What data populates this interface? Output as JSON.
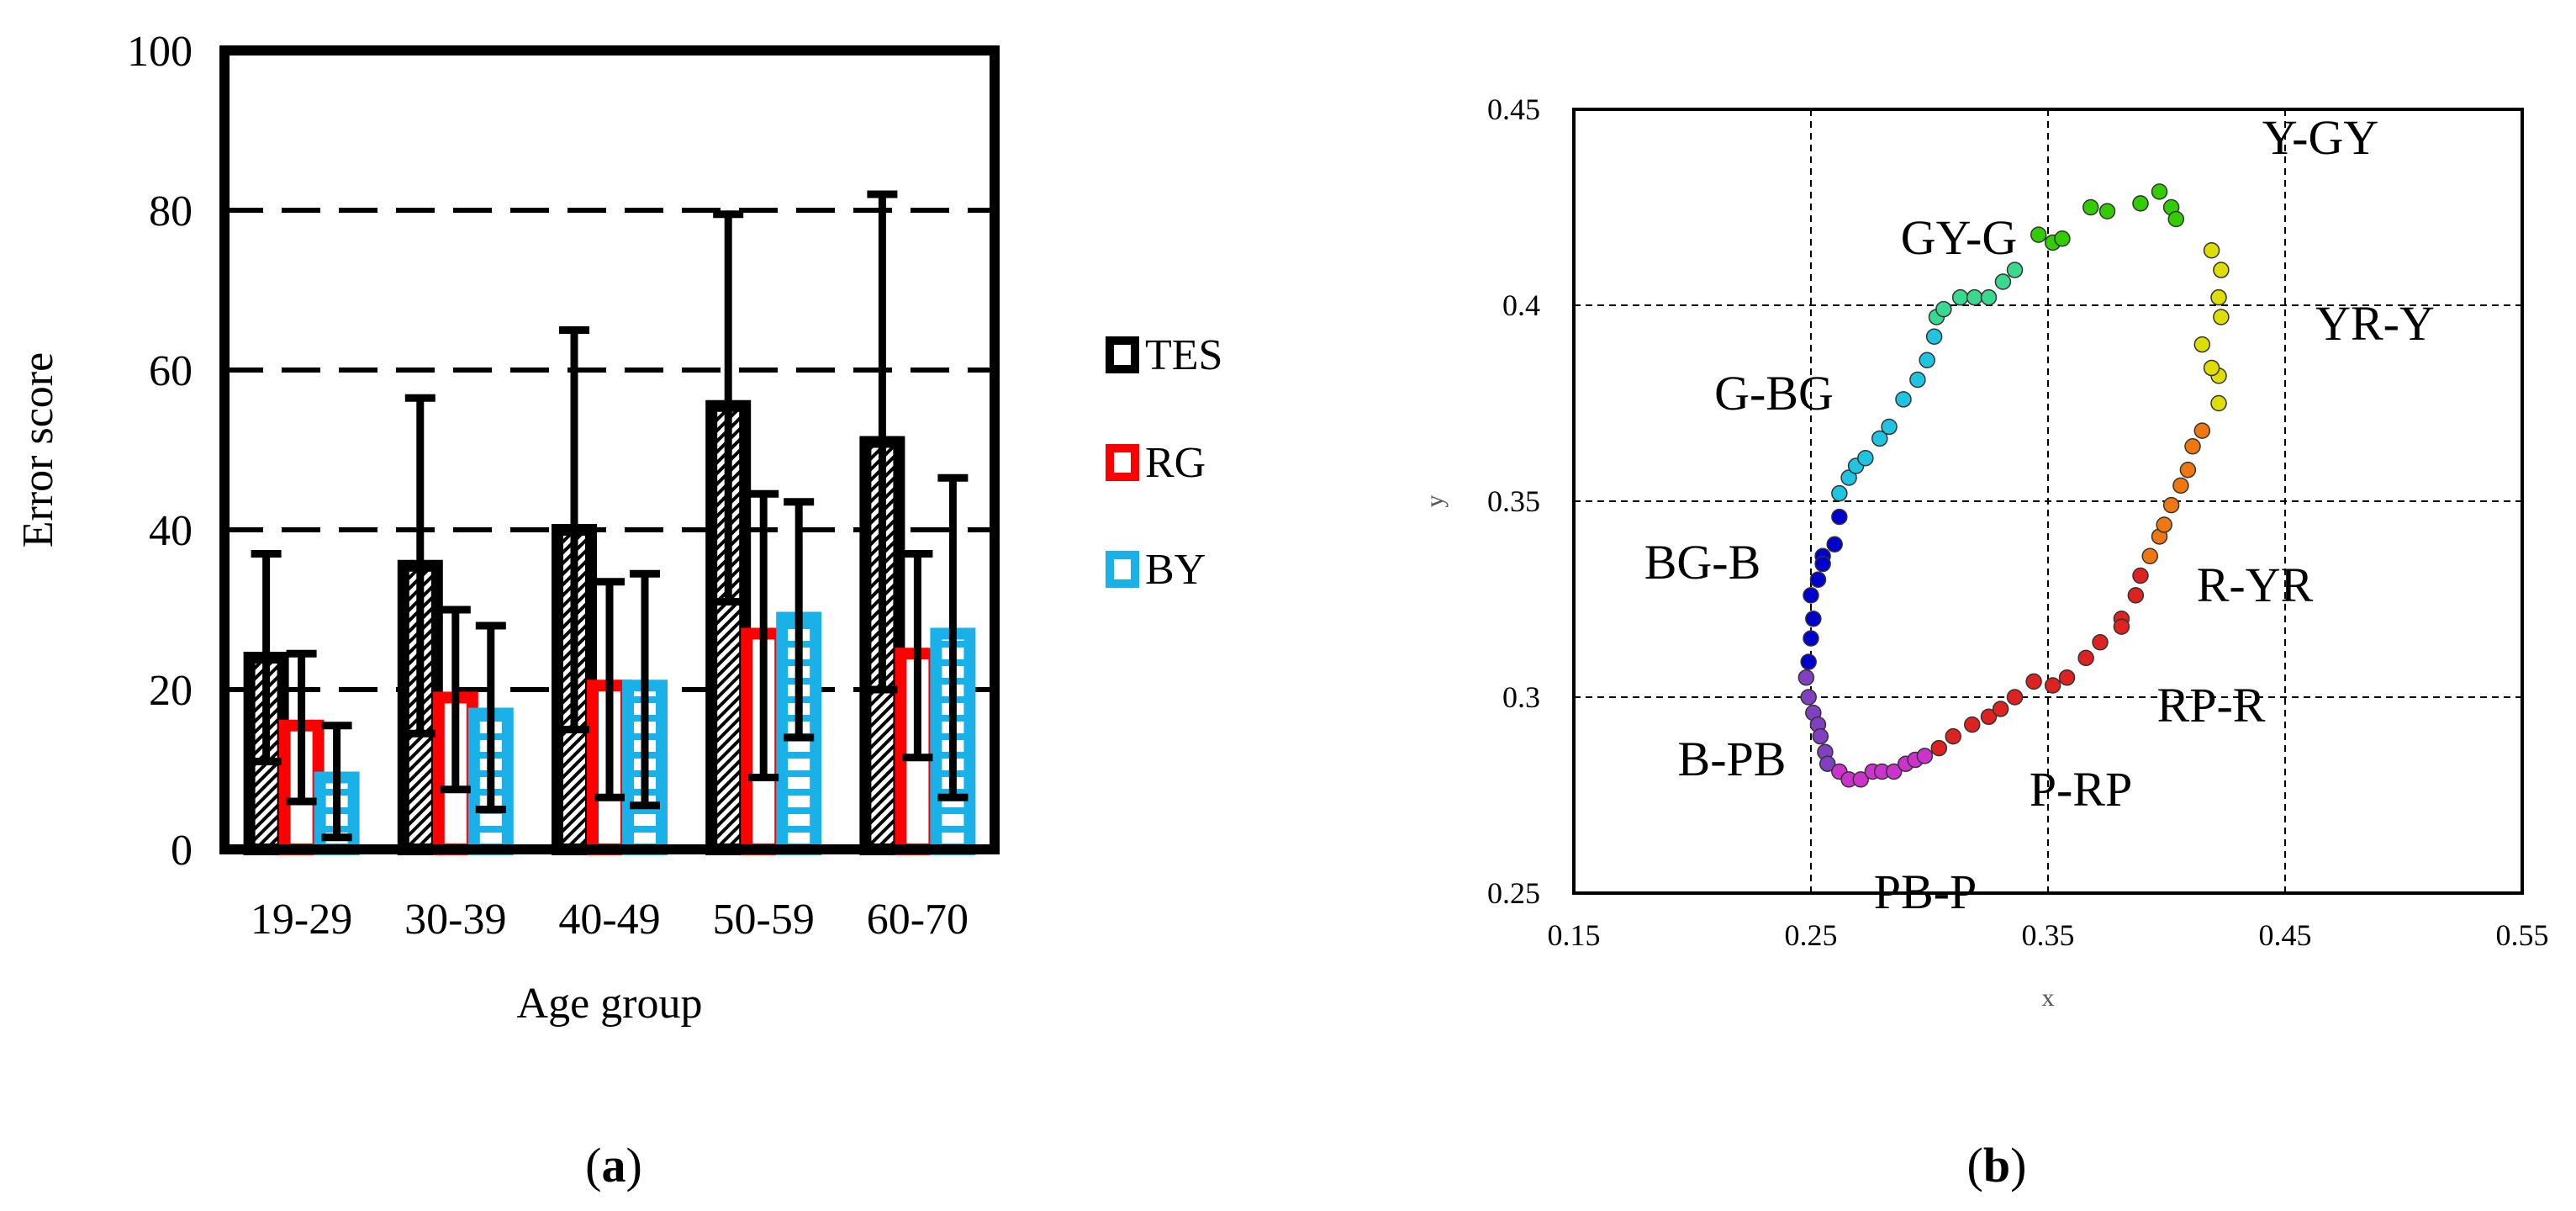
{
  "chart_data": [
    {
      "type": "bar",
      "panel_label": "a",
      "title": "",
      "xlabel": "Age group",
      "ylabel": "Error score",
      "ylim": [
        0,
        100
      ],
      "yticks": [
        "0",
        "20",
        "40",
        "60",
        "80",
        "100"
      ],
      "ytick_values": [
        0,
        20,
        40,
        60,
        80,
        100
      ],
      "grid": "dashed horizontal at 20, 40, 60, 80",
      "categories": [
        "19-29",
        "30-39",
        "40-49",
        "50-59",
        "60-70"
      ],
      "legend_position": "right",
      "series": [
        {
          "name": "TES",
          "color": "#000000",
          "fill": "#ffffff",
          "values": [
            24,
            35.5,
            40,
            55.5,
            51
          ],
          "error_low": [
            11,
            14.5,
            15,
            31,
            20
          ],
          "error_high": [
            37,
            56.5,
            65,
            79.5,
            82
          ]
        },
        {
          "name": "RG",
          "color": "#ff0000",
          "fill": "#ffffff",
          "values": [
            15.5,
            19,
            20.5,
            27,
            24.5
          ],
          "error_low": [
            6,
            7.5,
            6.5,
            9,
            11.5
          ],
          "error_high": [
            24.5,
            30,
            33.5,
            44.5,
            37
          ]
        },
        {
          "name": "BY",
          "color": "#1ab0e8",
          "fill": "#ffffff",
          "values": [
            9,
            17,
            20.5,
            29,
            27
          ],
          "error_low": [
            1.5,
            5,
            5.5,
            14,
            6.5
          ],
          "error_high": [
            15.5,
            28,
            34.5,
            43.5,
            46.5
          ]
        }
      ]
    },
    {
      "type": "scatter",
      "panel_label": "b",
      "title": "",
      "xlabel": "x",
      "ylabel": "y",
      "xlim": [
        0.15,
        0.55
      ],
      "ylim": [
        0.25,
        0.45
      ],
      "xticks": [
        "0.15",
        "0.25",
        "0.35",
        "0.45",
        "0.55"
      ],
      "xtick_values": [
        0.15,
        0.25,
        0.35,
        0.45,
        0.55
      ],
      "yticks": [
        "0.25",
        "0.3",
        "0.35",
        "0.4",
        "0.45"
      ],
      "ytick_values": [
        0.25,
        0.3,
        0.35,
        0.4,
        0.45
      ],
      "grid": "dashed",
      "segments": [
        {
          "name": "Y-GY",
          "color": "#33cc00",
          "points": [
            [
              0.346,
              0.418
            ],
            [
              0.352,
              0.416
            ],
            [
              0.356,
              0.417
            ],
            [
              0.368,
              0.425
            ],
            [
              0.375,
              0.424
            ],
            [
              0.389,
              0.426
            ],
            [
              0.397,
              0.429
            ],
            [
              0.402,
              0.425
            ],
            [
              0.404,
              0.422
            ]
          ]
        },
        {
          "name": "GY-G",
          "color": "#3bd890",
          "points": [
            [
              0.303,
              0.397
            ],
            [
              0.306,
              0.399
            ],
            [
              0.313,
              0.402
            ],
            [
              0.319,
              0.402
            ],
            [
              0.325,
              0.402
            ],
            [
              0.331,
              0.406
            ],
            [
              0.336,
              0.409
            ]
          ]
        },
        {
          "name": "G-BG",
          "color": "#21c4e0",
          "points": [
            [
              0.262,
              0.352
            ],
            [
              0.266,
              0.356
            ],
            [
              0.269,
              0.359
            ],
            [
              0.273,
              0.361
            ],
            [
              0.279,
              0.366
            ],
            [
              0.283,
              0.369
            ],
            [
              0.289,
              0.376
            ],
            [
              0.295,
              0.381
            ],
            [
              0.299,
              0.386
            ],
            [
              0.302,
              0.392
            ]
          ]
        },
        {
          "name": "BG-B",
          "color": "#0000cc",
          "points": [
            [
              0.262,
              0.346
            ],
            [
              0.26,
              0.339
            ],
            [
              0.255,
              0.336
            ],
            [
              0.255,
              0.334
            ],
            [
              0.253,
              0.33
            ],
            [
              0.25,
              0.326
            ],
            [
              0.251,
              0.32
            ],
            [
              0.25,
              0.315
            ],
            [
              0.249,
              0.309
            ]
          ]
        },
        {
          "name": "B-PB",
          "color": "#8040c0",
          "points": [
            [
              0.248,
              0.305
            ],
            [
              0.249,
              0.3
            ],
            [
              0.251,
              0.296
            ],
            [
              0.253,
              0.293
            ],
            [
              0.254,
              0.29
            ],
            [
              0.256,
              0.286
            ],
            [
              0.257,
              0.283
            ]
          ]
        },
        {
          "name": "PB-P",
          "color": "#cc33cc",
          "points": [
            [
              0.262,
              0.281
            ],
            [
              0.266,
              0.279
            ],
            [
              0.271,
              0.279
            ],
            [
              0.276,
              0.281
            ],
            [
              0.28,
              0.281
            ],
            [
              0.285,
              0.281
            ],
            [
              0.29,
              0.283
            ],
            [
              0.294,
              0.284
            ],
            [
              0.298,
              0.285
            ]
          ]
        },
        {
          "name": "P-RP",
          "color": "#dd2222",
          "points": [
            [
              0.304,
              0.287
            ],
            [
              0.31,
              0.29
            ],
            [
              0.318,
              0.293
            ],
            [
              0.325,
              0.295
            ],
            [
              0.33,
              0.297
            ],
            [
              0.336,
              0.3
            ],
            [
              0.344,
              0.304
            ],
            [
              0.352,
              0.303
            ],
            [
              0.358,
              0.305
            ],
            [
              0.366,
              0.31
            ],
            [
              0.372,
              0.314
            ],
            [
              0.381,
              0.32
            ],
            [
              0.381,
              0.318
            ],
            [
              0.387,
              0.326
            ],
            [
              0.389,
              0.331
            ]
          ]
        },
        {
          "name": "R-YR",
          "color": "#ee7711",
          "points": [
            [
              0.393,
              0.336
            ],
            [
              0.397,
              0.341
            ],
            [
              0.399,
              0.344
            ],
            [
              0.402,
              0.349
            ],
            [
              0.406,
              0.354
            ],
            [
              0.409,
              0.358
            ],
            [
              0.411,
              0.364
            ],
            [
              0.415,
              0.368
            ]
          ]
        },
        {
          "name": "YR-Y",
          "color": "#dddd00",
          "points": [
            [
              0.422,
              0.375
            ],
            [
              0.422,
              0.382
            ],
            [
              0.419,
              0.384
            ],
            [
              0.415,
              0.39
            ],
            [
              0.423,
              0.397
            ],
            [
              0.422,
              0.402
            ],
            [
              0.423,
              0.409
            ],
            [
              0.419,
              0.414
            ]
          ]
        }
      ],
      "annotations": [
        "Y-GY",
        "GY-G",
        "YR-Y",
        "G-BG",
        "BG-B",
        "R-YR",
        "RP-R",
        "B-PB",
        "P-RP",
        "PB-P"
      ]
    }
  ]
}
